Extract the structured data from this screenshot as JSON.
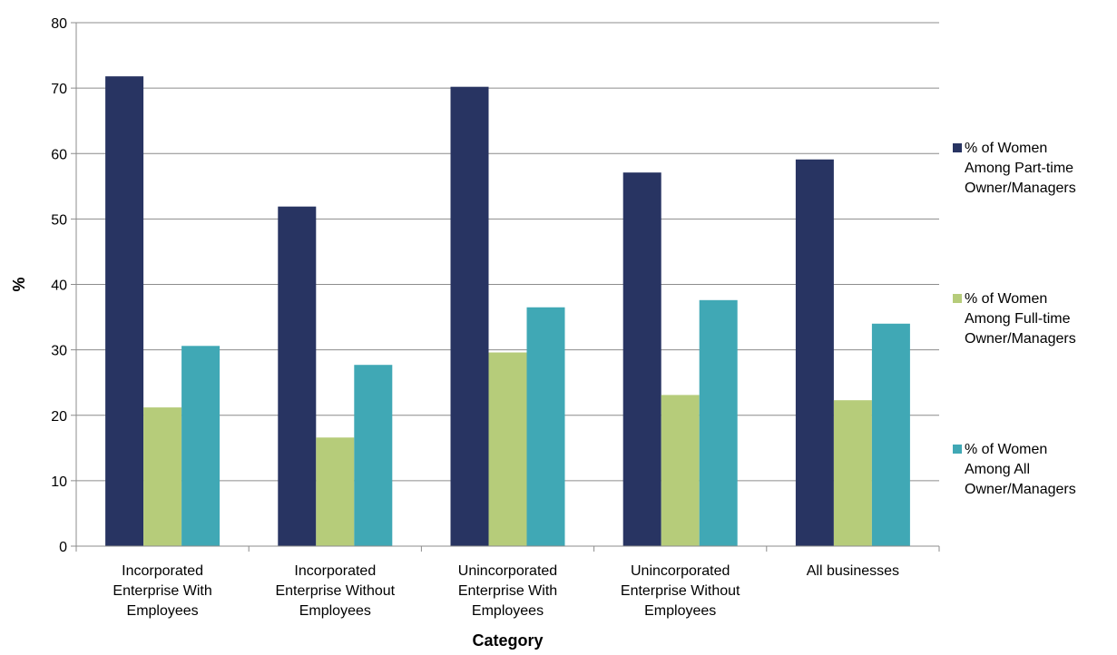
{
  "chart_data": {
    "type": "bar",
    "categories": [
      [
        "Incorporated",
        "Enterprise With",
        "Employees"
      ],
      [
        "Incorporated",
        "Enterprise Without",
        "Employees"
      ],
      [
        "Unincorporated",
        "Enterprise With",
        "Employees"
      ],
      [
        "Unincorporated",
        "Enterprise Without",
        "Employees"
      ],
      [
        "All businesses"
      ]
    ],
    "series": [
      {
        "name": [
          "% of Women",
          "Among Part-time",
          "Owner/Managers"
        ],
        "color": "#283462",
        "values": [
          71.8,
          51.9,
          70.2,
          57.1,
          59.1
        ]
      },
      {
        "name": [
          "% of Women",
          "Among Full-time",
          "Owner/Managers"
        ],
        "color": "#B6CC7A",
        "values": [
          21.2,
          16.6,
          29.6,
          23.1,
          22.3
        ]
      },
      {
        "name": [
          "% of Women",
          "Among All",
          "Owner/Managers"
        ],
        "color": "#40A8B5",
        "values": [
          30.6,
          27.7,
          36.5,
          37.6,
          34.0
        ]
      }
    ],
    "xlabel": "Category",
    "ylabel": "%",
    "ylim": [
      0,
      80
    ],
    "yticks": [
      0,
      10,
      20,
      30,
      40,
      50,
      60,
      70,
      80
    ],
    "grid": true,
    "legend_position": "right"
  }
}
